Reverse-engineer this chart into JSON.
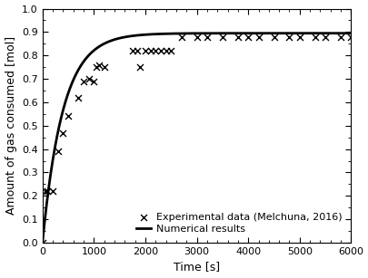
{
  "exp_x": [
    0,
    50,
    100,
    200,
    300,
    400,
    500,
    700,
    800,
    900,
    1000,
    1050,
    1100,
    1200,
    1750,
    1850,
    1900,
    2000,
    2100,
    2200,
    2300,
    2400,
    2500,
    2700,
    3000,
    3200,
    3500,
    3800,
    4000,
    4200,
    4500,
    4800,
    5000,
    5300,
    5500,
    5800,
    6000
  ],
  "exp_y": [
    0.0,
    0.22,
    0.22,
    0.22,
    0.39,
    0.47,
    0.54,
    0.62,
    0.69,
    0.7,
    0.69,
    0.75,
    0.76,
    0.75,
    0.82,
    0.82,
    0.75,
    0.82,
    0.82,
    0.82,
    0.82,
    0.82,
    0.82,
    0.88,
    0.88,
    0.88,
    0.88,
    0.88,
    0.88,
    0.88,
    0.88,
    0.88,
    0.88,
    0.88,
    0.88,
    0.88,
    0.88
  ],
  "xlabel": "Time [s]",
  "ylabel": "Amount of gas consumed [mol]",
  "xlim": [
    0,
    6000
  ],
  "ylim": [
    0,
    1.0
  ],
  "yticks": [
    0,
    0.1,
    0.2,
    0.3,
    0.4,
    0.5,
    0.6,
    0.7,
    0.8,
    0.9,
    1.0
  ],
  "xticks": [
    0,
    1000,
    2000,
    3000,
    4000,
    5000,
    6000
  ],
  "line_color": "#000000",
  "marker_color": "#000000",
  "legend_marker_label": "Experimental data (Melchuna, 2016)",
  "legend_line_label": "Numerical results",
  "curve_saturation": 0.895,
  "curve_rate": 0.0025
}
